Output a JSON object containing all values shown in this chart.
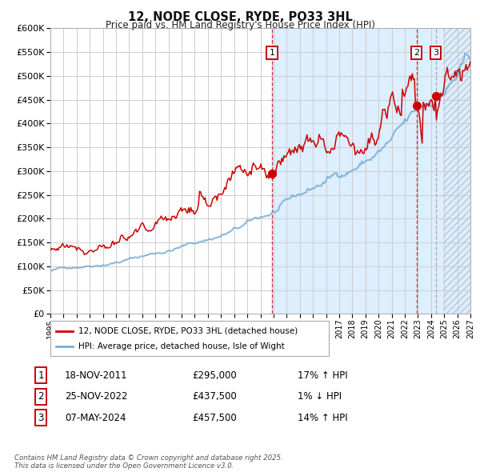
{
  "title": "12, NODE CLOSE, RYDE, PO33 3HL",
  "subtitle": "Price paid vs. HM Land Registry's House Price Index (HPI)",
  "background_color": "#ffffff",
  "plot_bg_color": "#ffffff",
  "grid_color": "#cccccc",
  "hpi_line_color": "#7aaed6",
  "price_line_color": "#cc0000",
  "sale_marker_color": "#cc0000",
  "sale1_date_num": 2011.885,
  "sale1_price": 295000,
  "sale2_date_num": 2022.899,
  "sale2_price": 437500,
  "sale3_date_num": 2024.354,
  "sale3_price": 457500,
  "shade_color": "#ddeeff",
  "vline1_x": 2011.885,
  "vline2_x": 2022.899,
  "vline3_x": 2024.354,
  "xmin": 1995.0,
  "xmax": 2027.0,
  "ymin": 0,
  "ymax": 600000,
  "yticks": [
    0,
    50000,
    100000,
    150000,
    200000,
    250000,
    300000,
    350000,
    400000,
    450000,
    500000,
    550000,
    600000
  ],
  "legend_label1": "12, NODE CLOSE, RYDE, PO33 3HL (detached house)",
  "legend_label2": "HPI: Average price, detached house, Isle of Wight",
  "footer": "Contains HM Land Registry data © Crown copyright and database right 2025.\nThis data is licensed under the Open Government Licence v3.0."
}
